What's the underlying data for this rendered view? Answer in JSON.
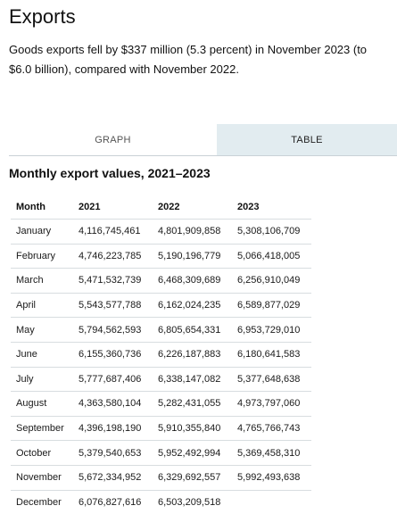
{
  "header": {
    "title": "Exports",
    "lede_line1": "Goods exports fell by $337 million (5.3 percent) in November 2023 (to",
    "lede_line2": "$6.0 billion), compared with November 2022."
  },
  "tabs": {
    "graph_label": "GRAPH",
    "table_label": "TABLE",
    "active": "TABLE"
  },
  "table": {
    "title": "Monthly export values, 2021–2023",
    "headers": [
      "Month",
      "2021",
      "2022",
      "2023"
    ],
    "rows": [
      [
        "January",
        "4,116,745,461",
        "4,801,909,858",
        "5,308,106,709"
      ],
      [
        "February",
        "4,746,223,785",
        "5,190,196,779",
        "5,066,418,005"
      ],
      [
        "March",
        "5,471,532,739",
        "6,468,309,689",
        "6,256,910,049"
      ],
      [
        "April",
        "5,543,577,788",
        "6,162,024,235",
        "6,589,877,029"
      ],
      [
        "May",
        "5,794,562,593",
        "6,805,654,331",
        "6,953,729,010"
      ],
      [
        "June",
        "6,155,360,736",
        "6,226,187,883",
        "6,180,641,583"
      ],
      [
        "July",
        "5,777,687,406",
        "6,338,147,082",
        "5,377,648,638"
      ],
      [
        "August",
        "4,363,580,104",
        "5,282,431,055",
        "4,973,797,060"
      ],
      [
        "September",
        "4,396,198,190",
        "5,910,355,840",
        "4,765,766,743"
      ],
      [
        "October",
        "5,379,540,653",
        "5,952,492,994",
        "5,369,458,310"
      ],
      [
        "November",
        "5,672,334,952",
        "6,329,692,557",
        "5,992,493,638"
      ],
      [
        "December",
        "6,076,827,616",
        "6,503,209,518",
        ""
      ]
    ]
  },
  "colors": {
    "active_tab_bg": "#e2ecf0",
    "row_divider": "#d8dde0"
  }
}
